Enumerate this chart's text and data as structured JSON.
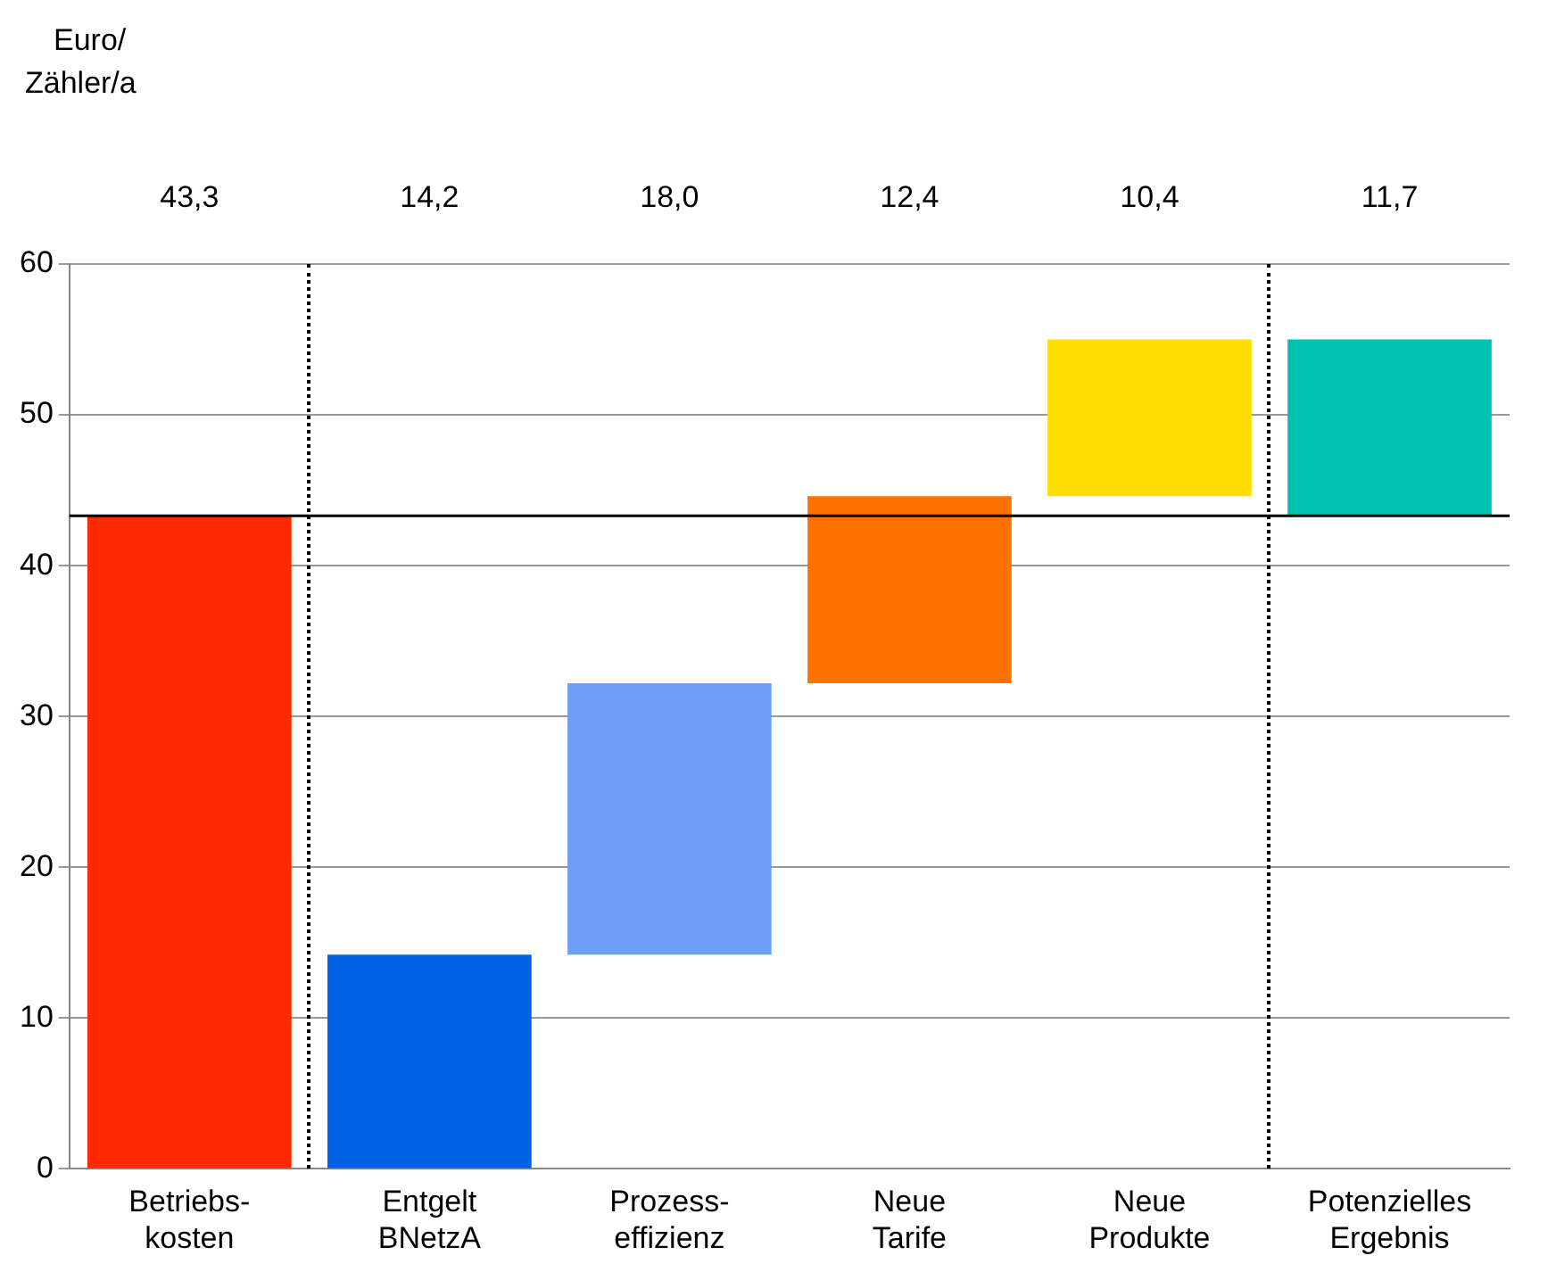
{
  "chart_data": {
    "type": "bar",
    "ylabel": "Euro/\nZähler/a",
    "categories": [
      "Betriebs-\nkosten",
      "Entgelt\nBNetzA",
      "Prozess-\neffizienz",
      "Neue\nTarife",
      "Neue\nProdukte",
      "Potenzielles\nErgebnis"
    ],
    "values": [
      43.3,
      14.2,
      18.0,
      12.4,
      10.4,
      11.7
    ],
    "base": [
      0,
      0,
      14.2,
      32.2,
      44.6,
      43.3
    ],
    "value_labels": [
      "43,3",
      "14,2",
      "18,0",
      "12,4",
      "10,4",
      "11,7"
    ],
    "colors": [
      "#ff2a00",
      "#0062e6",
      "#6e9ef5",
      "#ff7200",
      "#ffdd00",
      "#00c2b2"
    ],
    "ylim": [
      0,
      60
    ],
    "yticks": [
      0,
      10,
      20,
      30,
      40,
      50,
      60
    ],
    "grid": "y",
    "ref_lines": [
      {
        "axis": "y",
        "value": 43.3,
        "color": "#000000",
        "line_style": "solid"
      }
    ]
  }
}
